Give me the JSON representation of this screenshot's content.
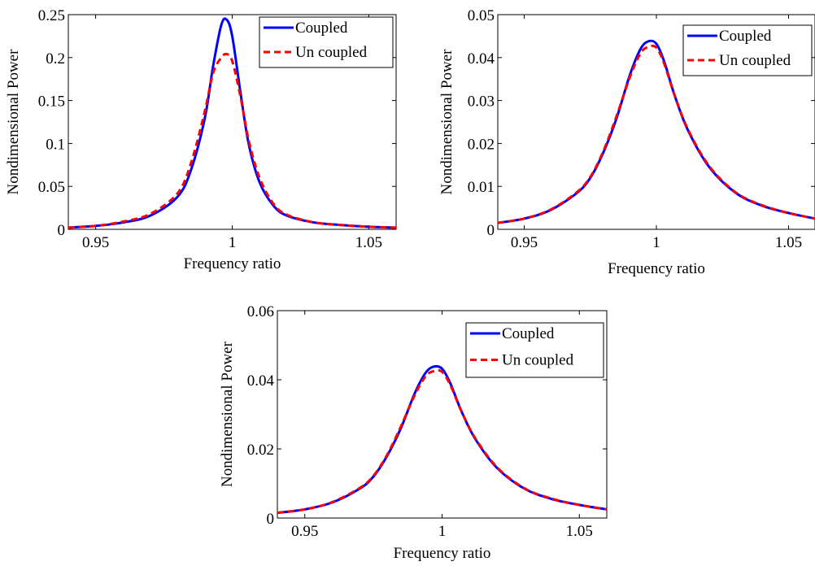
{
  "chart_data": [
    {
      "type": "line",
      "xlabel": "Frequency ratio",
      "ylabel": "Nondimensional Power",
      "xlim": [
        0.94,
        1.06
      ],
      "ylim": [
        0,
        0.25
      ],
      "xticks": [
        0.95,
        1,
        1.05
      ],
      "xtick_labels": [
        "0.95",
        "1",
        "1.05"
      ],
      "yticks": [
        0,
        0.05,
        0.1,
        0.15,
        0.2,
        0.25
      ],
      "ytick_labels": [
        "0",
        "0.05",
        "0.1",
        "0.15",
        "0.2",
        "0.25"
      ],
      "grid": false,
      "legend_position": "top-right",
      "x": [
        0.94,
        0.95,
        0.96,
        0.97,
        0.98,
        0.985,
        0.99,
        0.993,
        0.996,
        0.998,
        1.0,
        1.003,
        1.006,
        1.01,
        1.015,
        1.02,
        1.03,
        1.04,
        1.05,
        1.06
      ],
      "series": [
        {
          "name": "Coupled",
          "color": "#0000ff",
          "style": "solid",
          "values": [
            0.002,
            0.004,
            0.008,
            0.016,
            0.038,
            0.07,
            0.13,
            0.19,
            0.238,
            0.244,
            0.225,
            0.16,
            0.1,
            0.055,
            0.028,
            0.016,
            0.008,
            0.005,
            0.003,
            0.002
          ]
        },
        {
          "name": "Un coupled",
          "color": "#ff0000",
          "style": "dashed",
          "values": [
            0.002,
            0.004,
            0.009,
            0.018,
            0.042,
            0.078,
            0.138,
            0.182,
            0.2,
            0.204,
            0.196,
            0.155,
            0.104,
            0.06,
            0.03,
            0.017,
            0.008,
            0.005,
            0.003,
            0.002
          ]
        }
      ]
    },
    {
      "type": "line",
      "xlabel": "Frequency ratio",
      "ylabel": "Nondimensional Power",
      "xlim": [
        0.94,
        1.06
      ],
      "ylim": [
        0,
        0.05
      ],
      "xticks": [
        0.95,
        1,
        1.05
      ],
      "xtick_labels": [
        "0.95",
        "1",
        "1.05"
      ],
      "yticks": [
        0,
        0.01,
        0.02,
        0.03,
        0.04,
        0.05
      ],
      "ytick_labels": [
        "0",
        "0.01",
        "0.02",
        "0.03",
        "0.04",
        "0.05"
      ],
      "grid": false,
      "legend_position": "top-right",
      "x": [
        0.94,
        0.95,
        0.96,
        0.97,
        0.975,
        0.98,
        0.985,
        0.99,
        0.994,
        0.997,
        1.0,
        1.003,
        1.007,
        1.012,
        1.02,
        1.03,
        1.04,
        1.05,
        1.06
      ],
      "series": [
        {
          "name": "Coupled",
          "color": "#0000ff",
          "style": "solid",
          "values": [
            0.0015,
            0.0025,
            0.0045,
            0.0085,
            0.012,
            0.018,
            0.026,
            0.036,
            0.042,
            0.0438,
            0.0432,
            0.039,
            0.031,
            0.023,
            0.0145,
            0.0085,
            0.0055,
            0.0038,
            0.0025
          ]
        },
        {
          "name": "Un coupled",
          "color": "#ff0000",
          "style": "dashed",
          "values": [
            0.0015,
            0.0025,
            0.0046,
            0.0087,
            0.0122,
            0.0183,
            0.0265,
            0.0355,
            0.041,
            0.0425,
            0.0423,
            0.0385,
            0.031,
            0.0232,
            0.0147,
            0.0086,
            0.0056,
            0.0038,
            0.0025
          ]
        }
      ]
    },
    {
      "type": "line",
      "xlabel": "Frequency ratio",
      "ylabel": "Nondimensional Power",
      "xlim": [
        0.94,
        1.06
      ],
      "ylim": [
        0,
        0.06
      ],
      "xticks": [
        0.95,
        1,
        1.05
      ],
      "xtick_labels": [
        "0.95",
        "1",
        "1.05"
      ],
      "yticks": [
        0,
        0.02,
        0.04,
        0.06
      ],
      "ytick_labels": [
        "0",
        "0.02",
        "0.04",
        "0.06"
      ],
      "grid": false,
      "legend_position": "top-right",
      "x": [
        0.94,
        0.95,
        0.96,
        0.97,
        0.975,
        0.98,
        0.985,
        0.99,
        0.994,
        0.997,
        1.0,
        1.003,
        1.007,
        1.012,
        1.02,
        1.03,
        1.04,
        1.05,
        1.06
      ],
      "series": [
        {
          "name": "Coupled",
          "color": "#0000ff",
          "style": "solid",
          "values": [
            0.0015,
            0.0025,
            0.0045,
            0.0085,
            0.012,
            0.018,
            0.026,
            0.036,
            0.042,
            0.0438,
            0.0432,
            0.039,
            0.031,
            0.023,
            0.0145,
            0.0085,
            0.0055,
            0.0038,
            0.0025
          ]
        },
        {
          "name": "Un coupled",
          "color": "#ff0000",
          "style": "dashed",
          "values": [
            0.0015,
            0.0025,
            0.0046,
            0.0087,
            0.0122,
            0.0183,
            0.0265,
            0.0355,
            0.041,
            0.0425,
            0.0423,
            0.0385,
            0.031,
            0.0232,
            0.0147,
            0.0086,
            0.0056,
            0.0038,
            0.0025
          ]
        }
      ]
    }
  ]
}
